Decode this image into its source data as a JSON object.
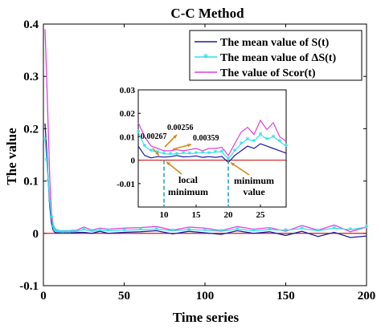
{
  "chart_data": {
    "type": "line",
    "title": "C-C Method",
    "xlabel": "Time series",
    "ylabel": "The value",
    "xlim": [
      0,
      200
    ],
    "ylim": [
      -0.1,
      0.4
    ],
    "xticks": [
      "0",
      "50",
      "100",
      "150",
      "200"
    ],
    "yticks": [
      "-0.1",
      "0",
      "0.1",
      "0.2",
      "0.3",
      "0.4"
    ],
    "legend_position": "top-right",
    "grid": false,
    "reference_line": {
      "y": 0,
      "color": "#cc0000"
    },
    "series": [
      {
        "name": "The mean value of S(t)",
        "color": "#1a1aa6",
        "marker": "none",
        "x": [
          1,
          2,
          3,
          4,
          5,
          6,
          7,
          8,
          9,
          10,
          12,
          14,
          16,
          18,
          20,
          25,
          30,
          35,
          40,
          50,
          60,
          70,
          80,
          90,
          100,
          110,
          120,
          130,
          140,
          150,
          160,
          170,
          180,
          190,
          200
        ],
        "y": [
          0.21,
          0.16,
          0.1,
          0.05,
          0.02,
          0.006,
          0.002,
          0.001,
          0.0015,
          0.0013,
          0.002,
          0.0015,
          0.0018,
          0.0012,
          0.0015,
          0.002,
          0.0,
          0.004,
          0.0,
          0.002,
          0.003,
          0.005,
          -0.001,
          0.004,
          0.001,
          -0.002,
          0.005,
          0.0,
          0.003,
          -0.004,
          0.004,
          -0.006,
          0.002,
          -0.008,
          -0.005
        ]
      },
      {
        "name": "The mean value of ΔS(t)",
        "color": "#33e0e8",
        "marker": "asterisk",
        "x": [
          1,
          2,
          3,
          4,
          5,
          6,
          7,
          8,
          9,
          10,
          12,
          14,
          16,
          18,
          20,
          25,
          30,
          35,
          40,
          50,
          60,
          70,
          80,
          90,
          100,
          110,
          120,
          130,
          140,
          150,
          160,
          170,
          180,
          190,
          200
        ],
        "y": [
          0.18,
          0.14,
          0.1,
          0.06,
          0.03,
          0.012,
          0.006,
          0.004,
          0.0035,
          0.0027,
          0.0026,
          0.003,
          0.0028,
          0.0032,
          0.0036,
          0.007,
          0.004,
          0.006,
          0.005,
          0.006,
          0.007,
          0.008,
          0.005,
          0.007,
          0.006,
          0.004,
          0.008,
          0.005,
          0.007,
          0.006,
          0.009,
          0.005,
          0.01,
          0.007,
          0.012
        ]
      },
      {
        "name": "The value of Scor(t)",
        "color": "#e040e0",
        "marker": "none",
        "x": [
          1,
          2,
          3,
          4,
          5,
          6,
          7,
          8,
          9,
          10,
          12,
          14,
          16,
          18,
          20,
          25,
          30,
          35,
          40,
          50,
          60,
          70,
          80,
          90,
          100,
          110,
          120,
          130,
          140,
          150,
          160,
          170,
          180,
          190,
          200
        ],
        "y": [
          0.39,
          0.3,
          0.2,
          0.1,
          0.04,
          0.016,
          0.01,
          0.006,
          0.005,
          0.004,
          0.004,
          0.0045,
          0.004,
          0.005,
          0.005,
          0.012,
          0.006,
          0.01,
          0.008,
          0.01,
          0.011,
          0.013,
          0.006,
          0.012,
          0.01,
          0.005,
          0.013,
          0.008,
          0.011,
          0.004,
          0.015,
          0.006,
          0.016,
          0.003,
          0.012
        ]
      }
    ],
    "inset": {
      "xlim": [
        6,
        29
      ],
      "ylim": [
        -0.02,
        0.03
      ],
      "xticks": [
        "10",
        "15",
        "20",
        "25"
      ],
      "yticks": [
        "0.03",
        "0.02",
        "0.01",
        "0",
        "-0.01"
      ],
      "series": [
        {
          "x": [
            6,
            7,
            8,
            9,
            10,
            11,
            12,
            13,
            14,
            15,
            16,
            17,
            18,
            19,
            20,
            21,
            22,
            23,
            24,
            25,
            26,
            27,
            28,
            29
          ],
          "y": [
            0.006,
            0.002,
            0.001,
            0.0015,
            0.0013,
            0.0015,
            0.002,
            0.0014,
            0.0015,
            0.0018,
            0.0012,
            0.0015,
            0.0012,
            0.0016,
            -0.001,
            0.002,
            0.004,
            0.006,
            0.005,
            0.007,
            0.006,
            0.005,
            0.004,
            0.003
          ]
        },
        {
          "x": [
            6,
            7,
            8,
            9,
            10,
            11,
            12,
            13,
            14,
            15,
            16,
            17,
            18,
            19,
            20,
            21,
            22,
            23,
            24,
            25,
            26,
            27,
            28,
            29
          ],
          "y": [
            0.012,
            0.006,
            0.004,
            0.0035,
            0.0027,
            0.0026,
            0.0026,
            0.003,
            0.0028,
            0.003,
            0.0032,
            0.003,
            0.0035,
            0.0036,
            0.0005,
            0.004,
            0.007,
            0.009,
            0.008,
            0.011,
            0.009,
            0.01,
            0.008,
            0.006
          ]
        },
        {
          "x": [
            6,
            7,
            8,
            9,
            10,
            11,
            12,
            13,
            14,
            15,
            16,
            17,
            18,
            19,
            20,
            21,
            22,
            23,
            24,
            25,
            26,
            27,
            28,
            29
          ],
          "y": [
            0.016,
            0.01,
            0.006,
            0.005,
            0.004,
            0.004,
            0.0045,
            0.004,
            0.0045,
            0.005,
            0.004,
            0.005,
            0.005,
            0.0055,
            0.002,
            0.007,
            0.012,
            0.014,
            0.011,
            0.017,
            0.013,
            0.016,
            0.01,
            0.008
          ]
        }
      ],
      "markers": [
        {
          "x": 10,
          "y": 0.00267,
          "label": "0.00267"
        },
        {
          "x": 11,
          "y": 0.00256,
          "label": "0.00256"
        },
        {
          "x": 19,
          "y": 0.00359,
          "label": "0.00359"
        }
      ],
      "local_minimum": {
        "x": 10,
        "label_line1": "local",
        "label_line2": "minimum"
      },
      "minimum_value": {
        "x": 20,
        "label_line1": "minimum",
        "label_line2": "value"
      }
    }
  }
}
